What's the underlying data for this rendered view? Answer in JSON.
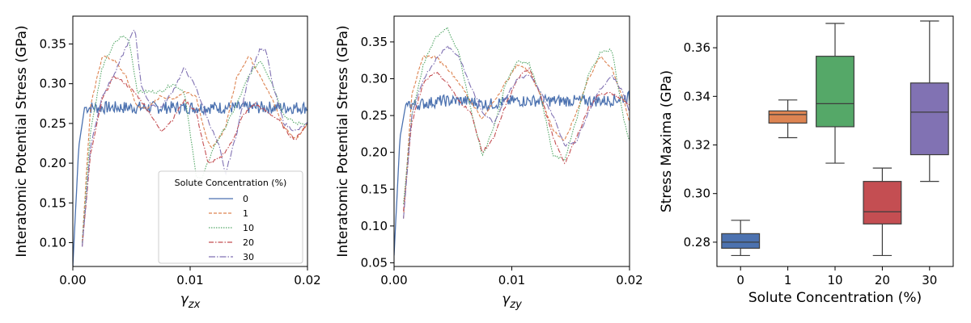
{
  "colors": {
    "0": "#4c72b0",
    "1": "#dd8452",
    "10": "#55a868",
    "20": "#c44e52",
    "30": "#8172b3"
  },
  "chart_data": [
    {
      "type": "line",
      "xlabel_symbol": "γ",
      "xlabel_sub": "zx",
      "ylabel": "Interatomic Potential Stress (GPa)",
      "xlim": [
        0,
        0.02
      ],
      "ylim": [
        0.07,
        0.385
      ],
      "xticks": [
        "0.00",
        "0.01",
        "0.02"
      ],
      "yticks": [
        0.1,
        0.15,
        0.2,
        0.25,
        0.3,
        0.35
      ],
      "legend": {
        "title": "Solute Concentration (%)",
        "position": "lower-right",
        "entries": [
          "0",
          "1",
          "10",
          "20",
          "30"
        ]
      },
      "series": [
        {
          "name": "0",
          "dash": "solid",
          "noise": 0.008,
          "x": [
            0,
            0.0005,
            0.001,
            0.002,
            0.004,
            0.006,
            0.008,
            0.01,
            0.012,
            0.014,
            0.016,
            0.018,
            0.02
          ],
          "y": [
            0.07,
            0.22,
            0.27,
            0.27,
            0.27,
            0.27,
            0.27,
            0.27,
            0.27,
            0.27,
            0.27,
            0.27,
            0.27
          ]
        },
        {
          "name": "1",
          "dash": "4,2",
          "noise": 0,
          "x": [
            0.0008,
            0.0015,
            0.0025,
            0.0035,
            0.0045,
            0.0055,
            0.0065,
            0.0075,
            0.0085,
            0.0095,
            0.0105,
            0.0115,
            0.012,
            0.013,
            0.014,
            0.015,
            0.016,
            0.017,
            0.018,
            0.019,
            0.02
          ],
          "y": [
            0.1,
            0.27,
            0.335,
            0.33,
            0.31,
            0.27,
            0.27,
            0.285,
            0.28,
            0.29,
            0.285,
            0.225,
            0.22,
            0.245,
            0.31,
            0.335,
            0.31,
            0.28,
            0.245,
            0.23,
            0.25
          ]
        },
        {
          "name": "10",
          "dash": "1.5,1.5",
          "noise": 0,
          "x": [
            0.0008,
            0.0015,
            0.0025,
            0.0035,
            0.0042,
            0.0048,
            0.0055,
            0.0065,
            0.0075,
            0.0085,
            0.0095,
            0.0105,
            0.011,
            0.012,
            0.013,
            0.014,
            0.015,
            0.016,
            0.017,
            0.018,
            0.019,
            0.02
          ],
          "y": [
            0.1,
            0.24,
            0.32,
            0.35,
            0.36,
            0.355,
            0.29,
            0.29,
            0.29,
            0.3,
            0.29,
            0.185,
            0.18,
            0.22,
            0.245,
            0.275,
            0.31,
            0.33,
            0.3,
            0.26,
            0.25,
            0.25
          ]
        },
        {
          "name": "20",
          "dash": "6,2,1.5,2",
          "noise": 0,
          "x": [
            0.0008,
            0.0015,
            0.0025,
            0.0035,
            0.0045,
            0.0055,
            0.0065,
            0.0075,
            0.0085,
            0.0095,
            0.0105,
            0.0115,
            0.0125,
            0.0135,
            0.0145,
            0.0155,
            0.0165,
            0.0175,
            0.0185,
            0.019,
            0.02
          ],
          "y": [
            0.095,
            0.21,
            0.28,
            0.31,
            0.3,
            0.285,
            0.265,
            0.24,
            0.255,
            0.28,
            0.265,
            0.2,
            0.205,
            0.225,
            0.26,
            0.275,
            0.265,
            0.255,
            0.235,
            0.23,
            0.25
          ]
        },
        {
          "name": "30",
          "dash": "8,2,1.5,2",
          "noise": 0,
          "x": [
            0.0008,
            0.0015,
            0.0025,
            0.0035,
            0.0045,
            0.0053,
            0.0058,
            0.0065,
            0.0075,
            0.0085,
            0.0095,
            0.0105,
            0.0115,
            0.0125,
            0.013,
            0.014,
            0.015,
            0.016,
            0.0165,
            0.017,
            0.018,
            0.019,
            0.02
          ],
          "y": [
            0.095,
            0.22,
            0.285,
            0.31,
            0.345,
            0.37,
            0.3,
            0.275,
            0.27,
            0.29,
            0.32,
            0.295,
            0.255,
            0.22,
            0.185,
            0.24,
            0.31,
            0.345,
            0.34,
            0.3,
            0.25,
            0.24,
            0.25
          ]
        }
      ]
    },
    {
      "type": "line",
      "xlabel_symbol": "γ",
      "xlabel_sub": "zy",
      "ylabel": "Interatomic Potential Stress  (GPa)",
      "xlim": [
        0,
        0.02
      ],
      "ylim": [
        0.045,
        0.385
      ],
      "xticks": [
        "0.00",
        "0.01",
        "0.02"
      ],
      "yticks": [
        0.05,
        0.1,
        0.15,
        0.2,
        0.25,
        0.3,
        0.35
      ],
      "series": [
        {
          "name": "0",
          "dash": "solid",
          "noise": 0.008,
          "x": [
            0,
            0.0005,
            0.001,
            0.002,
            0.004,
            0.006,
            0.008,
            0.01,
            0.012,
            0.014,
            0.016,
            0.018,
            0.02
          ],
          "y": [
            0.06,
            0.22,
            0.265,
            0.265,
            0.27,
            0.27,
            0.265,
            0.27,
            0.27,
            0.27,
            0.27,
            0.27,
            0.275
          ]
        },
        {
          "name": "1",
          "dash": "4,2",
          "noise": 0,
          "x": [
            0.0008,
            0.0015,
            0.0025,
            0.0035,
            0.0045,
            0.0055,
            0.0065,
            0.0075,
            0.0085,
            0.0095,
            0.0105,
            0.0115,
            0.0125,
            0.0135,
            0.0145,
            0.0155,
            0.0165,
            0.0175,
            0.0185,
            0.0195,
            0.02
          ],
          "y": [
            0.11,
            0.28,
            0.33,
            0.33,
            0.315,
            0.295,
            0.27,
            0.245,
            0.27,
            0.295,
            0.32,
            0.31,
            0.275,
            0.23,
            0.215,
            0.255,
            0.3,
            0.33,
            0.315,
            0.27,
            0.24
          ]
        },
        {
          "name": "10",
          "dash": "1.5,1.5",
          "noise": 0,
          "x": [
            0.0008,
            0.0015,
            0.0025,
            0.0035,
            0.0045,
            0.0055,
            0.0065,
            0.0075,
            0.0085,
            0.0095,
            0.0105,
            0.0115,
            0.0125,
            0.0135,
            0.0145,
            0.0155,
            0.0165,
            0.0175,
            0.0185,
            0.0195,
            0.02
          ],
          "y": [
            0.13,
            0.25,
            0.32,
            0.355,
            0.37,
            0.335,
            0.26,
            0.195,
            0.235,
            0.295,
            0.325,
            0.32,
            0.275,
            0.195,
            0.19,
            0.245,
            0.305,
            0.335,
            0.34,
            0.245,
            0.215
          ]
        },
        {
          "name": "20",
          "dash": "6,2,1.5,2",
          "noise": 0,
          "x": [
            0.0008,
            0.0015,
            0.0025,
            0.0035,
            0.0045,
            0.0055,
            0.0065,
            0.0075,
            0.0085,
            0.0095,
            0.0105,
            0.0115,
            0.0125,
            0.0135,
            0.0145,
            0.0155,
            0.0165,
            0.0175,
            0.0185,
            0.0195,
            0.02
          ],
          "y": [
            0.12,
            0.24,
            0.295,
            0.31,
            0.295,
            0.27,
            0.255,
            0.2,
            0.22,
            0.265,
            0.3,
            0.315,
            0.275,
            0.22,
            0.185,
            0.22,
            0.26,
            0.28,
            0.28,
            0.27,
            0.265
          ]
        },
        {
          "name": "30",
          "dash": "8,2,1.5,2",
          "noise": 0,
          "x": [
            0.0008,
            0.0015,
            0.0025,
            0.0035,
            0.0045,
            0.0055,
            0.0065,
            0.0075,
            0.0085,
            0.0095,
            0.0105,
            0.0115,
            0.0125,
            0.0135,
            0.0145,
            0.0155,
            0.0165,
            0.0175,
            0.0185,
            0.0195,
            0.02
          ],
          "y": [
            0.11,
            0.25,
            0.3,
            0.325,
            0.345,
            0.33,
            0.29,
            0.255,
            0.24,
            0.275,
            0.3,
            0.305,
            0.28,
            0.25,
            0.21,
            0.215,
            0.255,
            0.285,
            0.305,
            0.28,
            0.255
          ]
        }
      ]
    },
    {
      "type": "box",
      "xlabel": "Solute Concentration (%)",
      "ylabel": "Stress Maxima (GPa)",
      "ylim": [
        0.27,
        0.373
      ],
      "yticks": [
        0.28,
        0.3,
        0.32,
        0.34,
        0.36
      ],
      "categories": [
        "0",
        "1",
        "10",
        "20",
        "30"
      ],
      "boxes": [
        {
          "category": "0",
          "min": 0.2745,
          "q1": 0.2775,
          "median": 0.28,
          "q3": 0.2835,
          "max": 0.289
        },
        {
          "category": "1",
          "min": 0.323,
          "q1": 0.329,
          "median": 0.3325,
          "q3": 0.334,
          "max": 0.3385
        },
        {
          "category": "10",
          "min": 0.3125,
          "q1": 0.3275,
          "median": 0.337,
          "q3": 0.3565,
          "max": 0.37
        },
        {
          "category": "20",
          "min": 0.2745,
          "q1": 0.2875,
          "median": 0.2925,
          "q3": 0.305,
          "max": 0.3105
        },
        {
          "category": "30",
          "min": 0.305,
          "q1": 0.316,
          "median": 0.3335,
          "q3": 0.3455,
          "max": 0.371
        }
      ]
    }
  ]
}
